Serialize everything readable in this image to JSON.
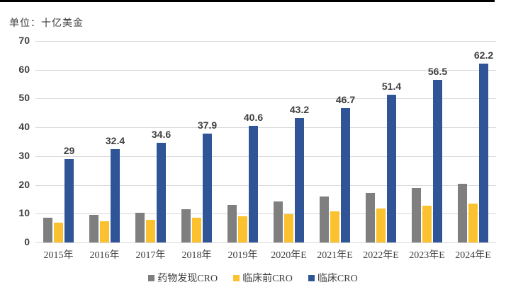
{
  "chart_data": {
    "type": "bar",
    "unit_label": "单位：十亿美金",
    "categories": [
      "2015年",
      "2016年",
      "2017年",
      "2018年",
      "2019年",
      "2020年E",
      "2021年E",
      "2022年E",
      "2023年E",
      "2024年E"
    ],
    "series": [
      {
        "name": "药物发现CRO",
        "color": "#7F7F7F",
        "values": [
          8.5,
          9.5,
          10.4,
          11.5,
          13.1,
          14.3,
          16.0,
          17.3,
          18.9,
          20.4
        ],
        "labels_shown": false
      },
      {
        "name": "临床前CRO",
        "color": "#FCC12F",
        "values": [
          6.8,
          7.3,
          7.9,
          8.5,
          9.2,
          9.9,
          10.8,
          11.8,
          12.7,
          13.6
        ],
        "labels_shown": false
      },
      {
        "name": "临床CRO",
        "color": "#2F5597",
        "values": [
          29,
          32.4,
          34.6,
          37.9,
          40.6,
          43.2,
          46.7,
          51.4,
          56.5,
          62.2
        ],
        "labels_shown": true,
        "data_labels": [
          "29",
          "32.4",
          "34.6",
          "37.9",
          "40.6",
          "43.2",
          "46.7",
          "51.4",
          "56.5",
          "62.2"
        ]
      }
    ],
    "ylim": [
      0,
      70
    ],
    "yticks": [
      "70",
      "60",
      "50",
      "40",
      "30",
      "20",
      "10",
      "0"
    ],
    "grid": "horizontal",
    "gridline_color": "#D9D9D9",
    "legend_position": "bottom",
    "text_color": "#404040"
  }
}
